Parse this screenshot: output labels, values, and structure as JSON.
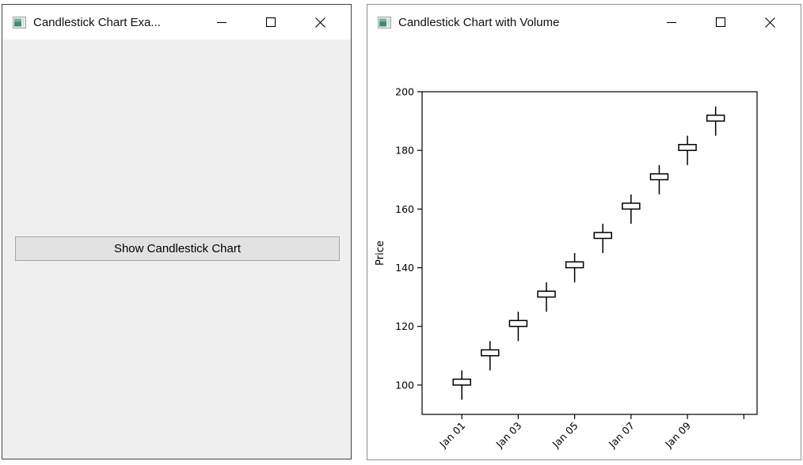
{
  "left_window": {
    "title": "Candlestick Chart Exa...",
    "button_label": "Show Candlestick Chart"
  },
  "right_window": {
    "title": "Candlestick Chart with Volume"
  },
  "chart_data": {
    "type": "candlestick",
    "title": "",
    "xlabel": "",
    "ylabel": "Price",
    "grid": false,
    "ylim": [
      90,
      200
    ],
    "xlim_days": [
      -1.41,
      10.47
    ],
    "y_ticks": [
      100,
      120,
      140,
      160,
      180,
      200
    ],
    "x_ticks": [
      {
        "day": 0,
        "label": "Jan 01"
      },
      {
        "day": 2,
        "label": "Jan 03"
      },
      {
        "day": 4,
        "label": "Jan 05"
      },
      {
        "day": 6,
        "label": "Jan 07"
      },
      {
        "day": 8,
        "label": "Jan 09"
      },
      {
        "day": 10,
        "label": ""
      }
    ],
    "candles": [
      {
        "date": "Jan 01",
        "open": 100,
        "high": 105,
        "low": 95,
        "close": 102
      },
      {
        "date": "Jan 02",
        "open": 110,
        "high": 115,
        "low": 105,
        "close": 112
      },
      {
        "date": "Jan 03",
        "open": 120,
        "high": 125,
        "low": 115,
        "close": 122
      },
      {
        "date": "Jan 04",
        "open": 130,
        "high": 135,
        "low": 125,
        "close": 132
      },
      {
        "date": "Jan 05",
        "open": 140,
        "high": 145,
        "low": 135,
        "close": 142
      },
      {
        "date": "Jan 06",
        "open": 150,
        "high": 155,
        "low": 145,
        "close": 152
      },
      {
        "date": "Jan 07",
        "open": 160,
        "high": 165,
        "low": 155,
        "close": 162
      },
      {
        "date": "Jan 08",
        "open": 170,
        "high": 175,
        "low": 165,
        "close": 172
      },
      {
        "date": "Jan 09",
        "open": 180,
        "high": 185,
        "low": 175,
        "close": 182
      },
      {
        "date": "Jan 10",
        "open": 190,
        "high": 195,
        "low": 185,
        "close": 192
      }
    ]
  },
  "colors": {
    "candle_fill": "#ffffff",
    "candle_edge": "#000000",
    "axis": "#000000",
    "left_content_bg": "#efefef",
    "button_face": "#e2e2e2",
    "button_border": "#a7a7a7",
    "icon_teal": "#3d8a77"
  }
}
